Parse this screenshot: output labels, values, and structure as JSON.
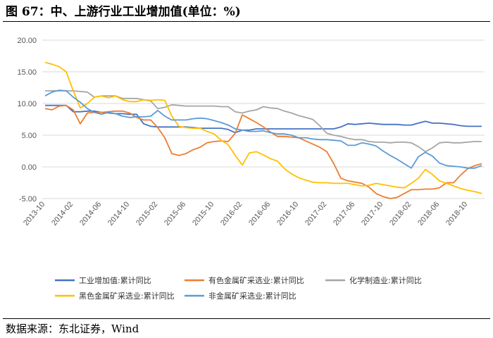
{
  "header": {
    "title": "图 67：中、上游行业工业增加值(单位：%)"
  },
  "footer": {
    "source": "数据来源：东北证券，Wind"
  },
  "chart_data": {
    "type": "line",
    "title": "",
    "xlabel": "",
    "ylabel": "",
    "ylim": [
      -5,
      20
    ],
    "y_ticks": [
      "20.00",
      "15.00",
      "10.00",
      "5.00",
      "0.00",
      "-5.00"
    ],
    "x_tick_labels": [
      "2013-10",
      "2014-02",
      "2014-06",
      "2014-10",
      "2015-02",
      "2015-06",
      "2015-10",
      "2016-02",
      "2016-06",
      "2016-10",
      "2017-02",
      "2017-06",
      "2017-10",
      "2018-02",
      "2018-06",
      "2018-10"
    ],
    "x_start": "2013-10",
    "grid": "horizontal",
    "legend_position": "bottom",
    "series": [
      {
        "name": "工业增加值:累计同比",
        "color": "#4472C4",
        "values": [
          9.7,
          9.7,
          9.7,
          9.7,
          8.7,
          8.7,
          8.8,
          8.8,
          8.6,
          8.5,
          8.4,
          8.4,
          8.3,
          8.3,
          6.8,
          6.4,
          6.3,
          6.3,
          6.3,
          6.3,
          6.3,
          6.2,
          6.1,
          6.1,
          6.1,
          6.1,
          5.9,
          5.4,
          5.8,
          5.8,
          6.0,
          6.0,
          6.0,
          6.0,
          6.0,
          6.0,
          6.0,
          6.0,
          6.0,
          6.0,
          6.0,
          6.0,
          6.3,
          6.8,
          6.7,
          6.8,
          6.9,
          6.8,
          6.7,
          6.7,
          6.7,
          6.6,
          6.6,
          6.9,
          7.2,
          6.9,
          6.9,
          6.8,
          6.7,
          6.5,
          6.4,
          6.4,
          6.4
        ]
      },
      {
        "name": "有色金属矿采选业:累计同比",
        "color": "#ED7D31",
        "values": [
          9.2,
          9.0,
          9.6,
          9.7,
          9.0,
          6.8,
          8.5,
          8.6,
          8.6,
          8.7,
          8.8,
          8.8,
          8.5,
          7.8,
          7.4,
          7.4,
          6.2,
          4.6,
          2.1,
          1.8,
          2.1,
          2.7,
          3.1,
          3.8,
          4.0,
          4.1,
          4.0,
          5.3,
          8.2,
          7.6,
          7.0,
          6.3,
          5.5,
          4.8,
          4.8,
          4.7,
          4.6,
          4.1,
          3.6,
          3.1,
          2.4,
          0.5,
          -1.8,
          -2.2,
          -2.4,
          -2.6,
          -3.2,
          -4.2,
          -4.7,
          -5.0,
          -4.8,
          -4.2,
          -3.6,
          -3.6,
          -3.5,
          -3.5,
          -3.3,
          -2.5,
          -2.5,
          -1.3,
          -0.3,
          0.2,
          0.5
        ]
      },
      {
        "name": "化学制造业:累计同比",
        "color": "#A5A5A5",
        "values": [
          12.0,
          12.0,
          12.0,
          12.0,
          12.0,
          11.9,
          11.8,
          11.0,
          11.2,
          11.2,
          11.2,
          10.8,
          10.8,
          10.8,
          10.6,
          10.4,
          9.2,
          9.4,
          9.8,
          9.7,
          9.6,
          9.6,
          9.6,
          9.6,
          9.6,
          9.5,
          9.5,
          8.7,
          8.5,
          8.8,
          9.0,
          9.5,
          9.3,
          9.2,
          8.8,
          8.5,
          8.1,
          7.8,
          7.5,
          6.5,
          5.3,
          5.0,
          4.8,
          4.5,
          4.3,
          4.3,
          4.0,
          3.9,
          3.9,
          3.8,
          3.9,
          3.9,
          3.8,
          3.2,
          2.4,
          3.0,
          3.8,
          3.9,
          3.8,
          3.8,
          3.9,
          4.0,
          4.0
        ]
      },
      {
        "name": "黑色金属矿采选业:累计同比",
        "color": "#FFC000",
        "values": [
          16.5,
          16.2,
          15.8,
          15.0,
          12.0,
          9.3,
          10.0,
          11.0,
          11.2,
          10.9,
          11.2,
          10.6,
          10.3,
          10.3,
          10.6,
          10.5,
          10.6,
          10.5,
          8.0,
          6.4,
          6.2,
          6.1,
          6.1,
          5.6,
          5.2,
          4.2,
          3.5,
          1.8,
          0.3,
          2.2,
          2.4,
          1.9,
          1.3,
          0.9,
          -0.3,
          -1.1,
          -1.7,
          -2.1,
          -2.4,
          -2.5,
          -2.5,
          -2.6,
          -2.6,
          -2.6,
          -2.8,
          -3.0,
          -2.9,
          -2.6,
          -2.8,
          -3.0,
          -3.2,
          -3.3,
          -2.6,
          -1.8,
          -0.4,
          -1.2,
          -2.2,
          -2.6,
          -3.0,
          -3.4,
          -3.7,
          -3.9,
          -4.2
        ]
      },
      {
        "name": "非金属矿采选业:累计同比",
        "color": "#5B9BD5",
        "values": [
          11.2,
          11.8,
          12.1,
          12.0,
          11.0,
          10.2,
          9.2,
          8.6,
          8.3,
          8.6,
          8.4,
          8.0,
          7.8,
          7.9,
          7.9,
          8.0,
          8.9,
          8.0,
          7.4,
          7.4,
          7.4,
          7.6,
          7.7,
          7.6,
          7.3,
          7.0,
          6.6,
          6.0,
          5.8,
          5.6,
          5.6,
          5.7,
          5.4,
          5.2,
          5.2,
          5.0,
          4.6,
          4.6,
          4.4,
          4.3,
          4.3,
          4.2,
          4.1,
          3.4,
          3.4,
          3.8,
          3.6,
          3.3,
          2.5,
          1.8,
          1.2,
          0.5,
          -0.2,
          1.6,
          2.3,
          1.7,
          0.6,
          0.2,
          0.1,
          0.0,
          -0.2,
          -0.2,
          0.2
        ]
      }
    ]
  }
}
